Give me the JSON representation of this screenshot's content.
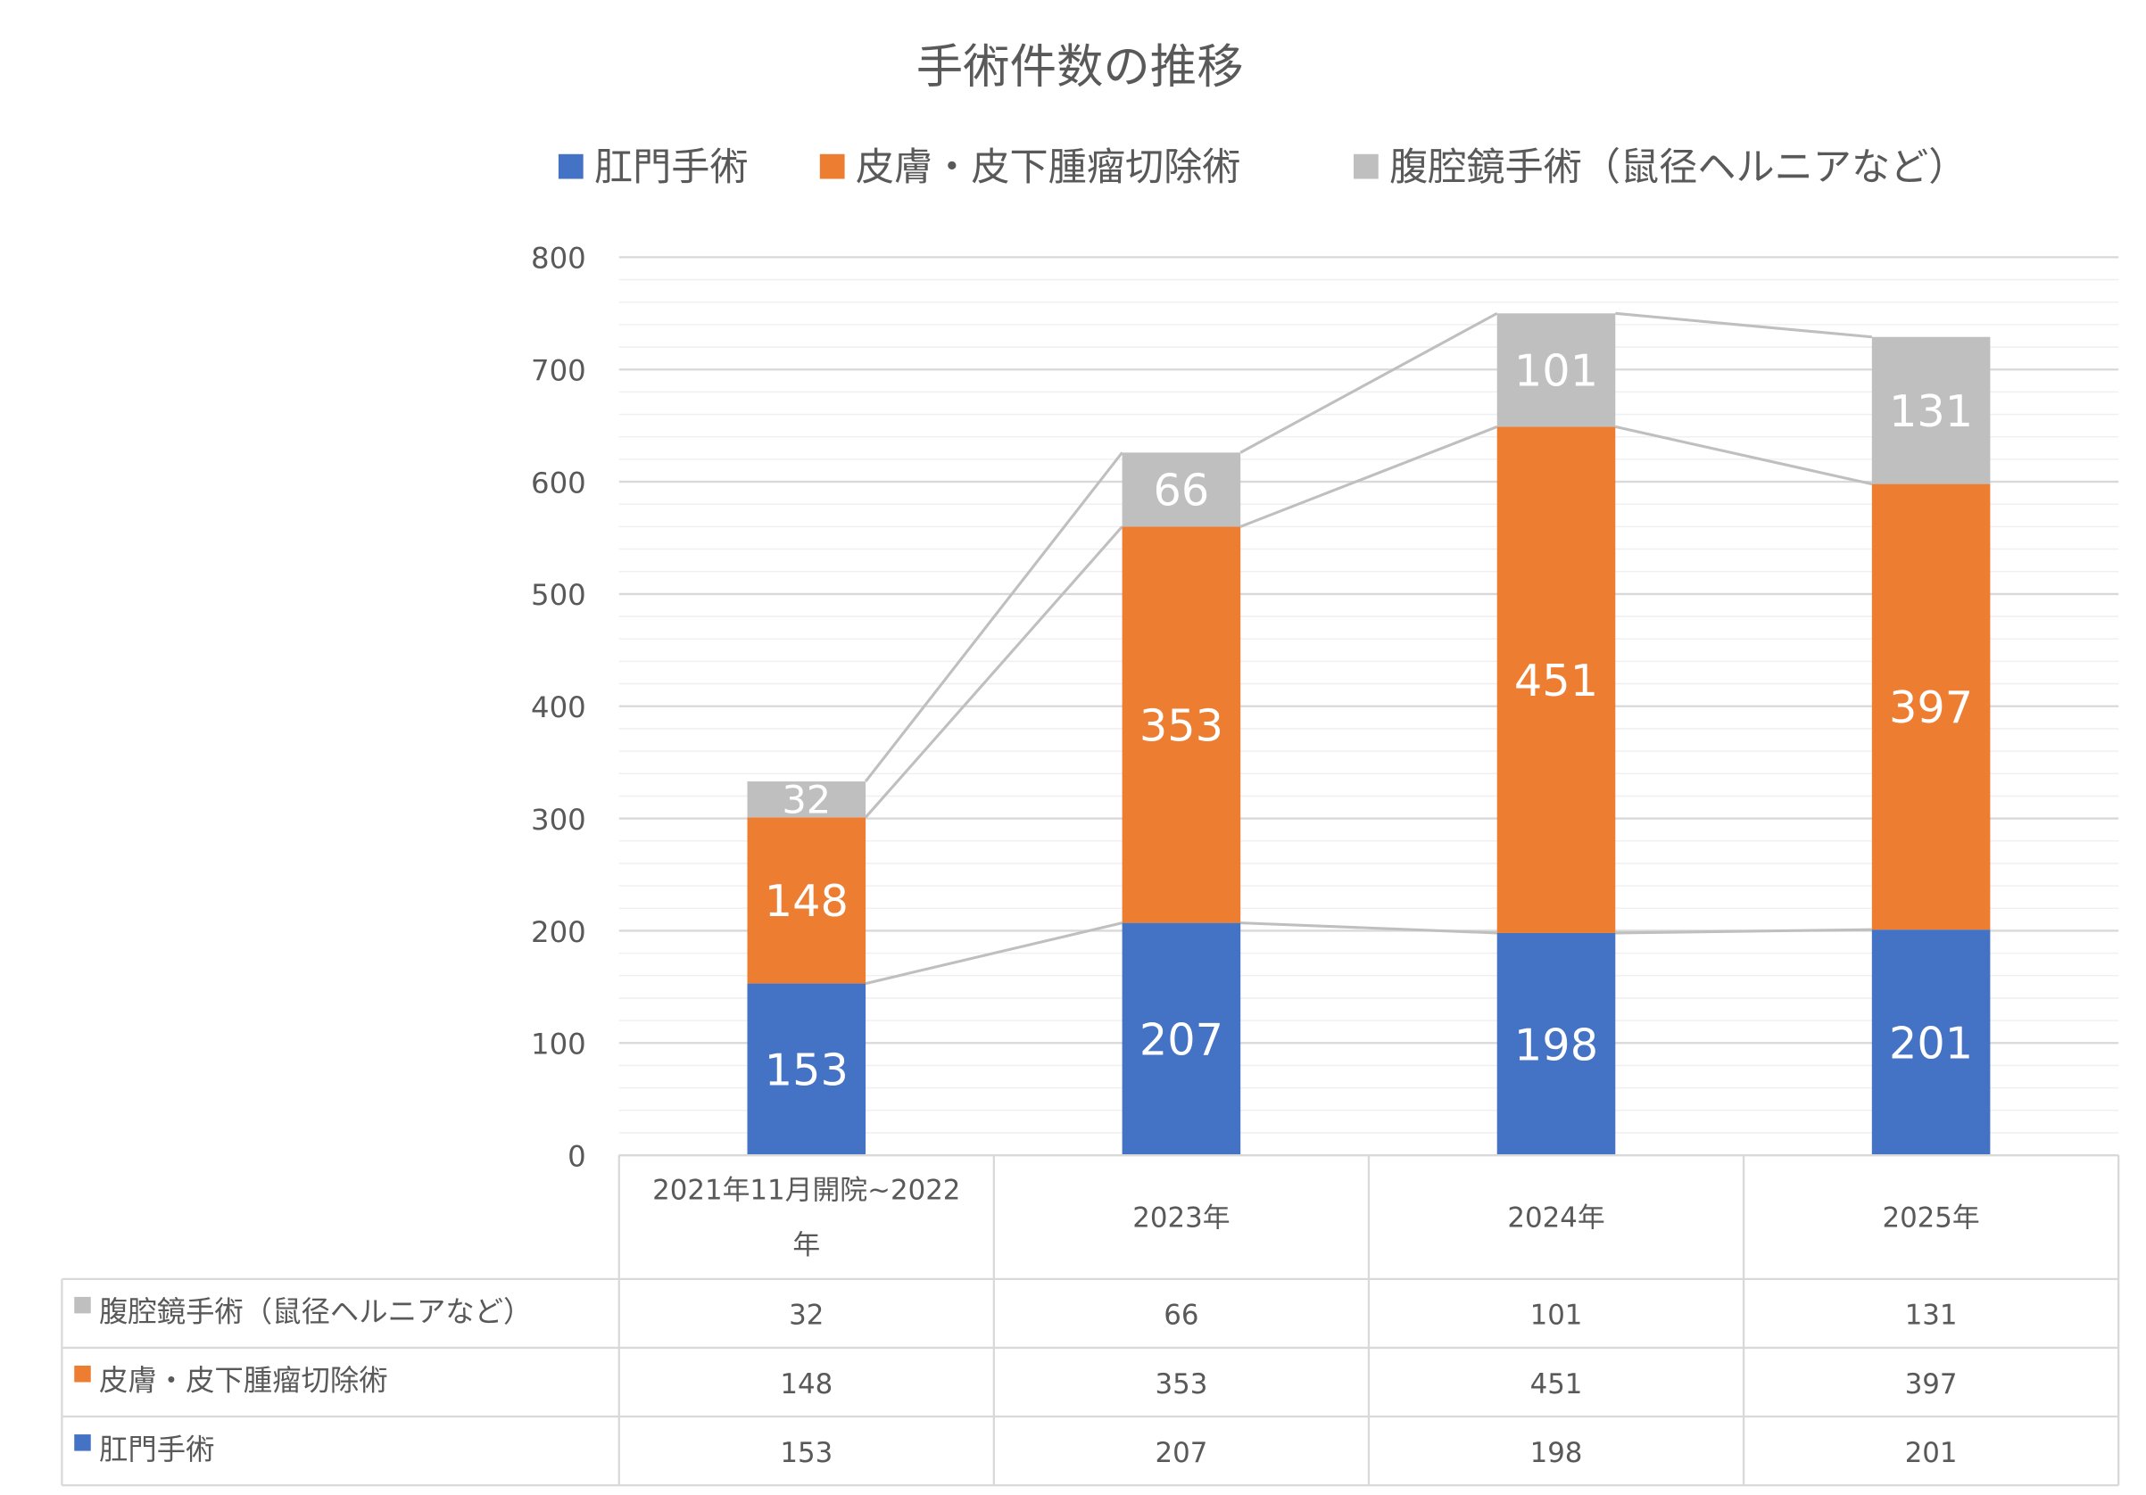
{
  "chart_data": {
    "type": "bar",
    "stacked": true,
    "title": "手術件数の推移",
    "categories": [
      "2021年11月開院~2022年",
      "2023年",
      "2024年",
      "2025年"
    ],
    "series": [
      {
        "name": "肛門手術",
        "color": "#4472C4",
        "values": [
          153,
          207,
          198,
          201
        ]
      },
      {
        "name": "皮膚・皮下腫瘤切除術",
        "color": "#ED7D31",
        "values": [
          148,
          353,
          451,
          397
        ]
      },
      {
        "name": "腹腔鏡手術（鼠径ヘルニアなど）",
        "color": "#BFBFBF",
        "values": [
          32,
          66,
          101,
          131
        ]
      }
    ],
    "ylim": [
      0,
      800
    ],
    "yticks": [
      0,
      100,
      200,
      300,
      400,
      500,
      600,
      700,
      800
    ],
    "grid": true,
    "legend_position": "top",
    "data_labels": true,
    "series_lines": true,
    "data_table": true,
    "data_table_row_order": [
      2,
      1,
      0
    ]
  }
}
